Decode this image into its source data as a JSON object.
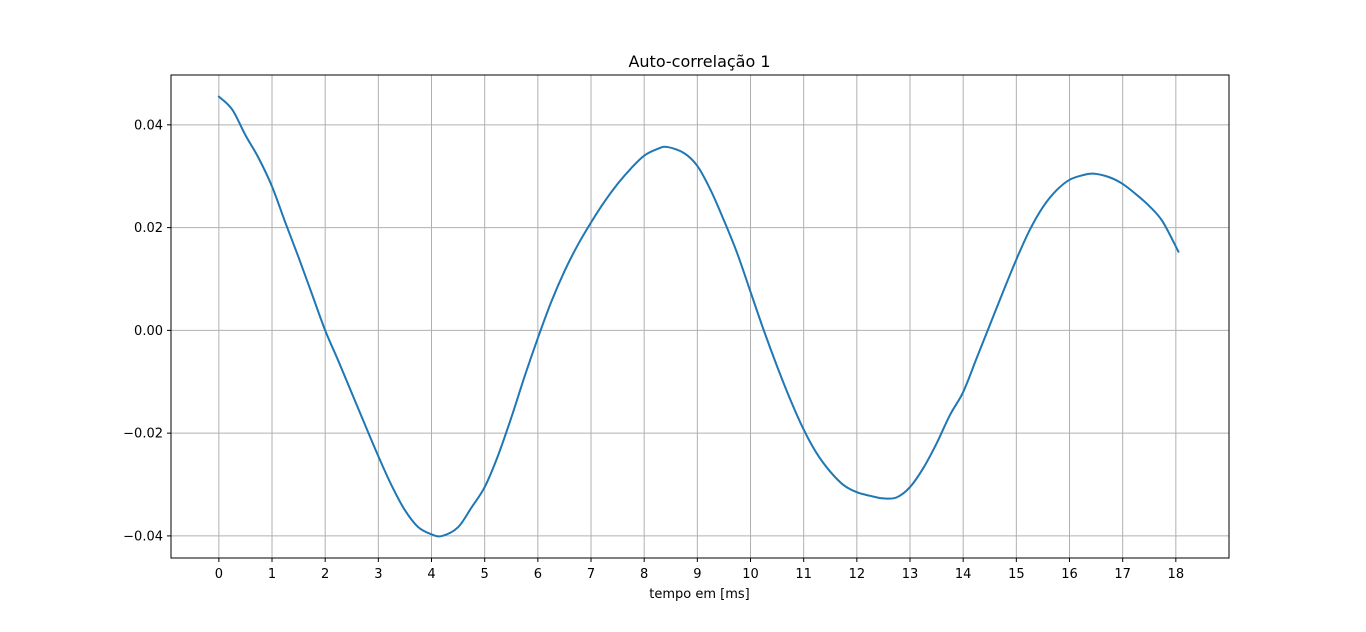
{
  "chart_data": {
    "type": "line",
    "title": "Auto-correlação 1",
    "xlabel": "tempo em [ms]",
    "ylabel": "",
    "xlim": [
      -0.9,
      19.0
    ],
    "ylim": [
      -0.0443,
      0.0497
    ],
    "x_ticks": [
      0,
      1,
      2,
      3,
      4,
      5,
      6,
      7,
      8,
      9,
      10,
      11,
      12,
      13,
      14,
      15,
      16,
      17,
      18
    ],
    "x_tick_labels": [
      "0",
      "1",
      "2",
      "3",
      "4",
      "5",
      "6",
      "7",
      "8",
      "9",
      "10",
      "11",
      "12",
      "13",
      "14",
      "15",
      "16",
      "17",
      "18"
    ],
    "y_ticks": [
      -0.04,
      -0.02,
      0.0,
      0.02,
      0.04
    ],
    "y_tick_labels": [
      "−0.04",
      "−0.02",
      "0.00",
      "0.02",
      "0.04"
    ],
    "grid": true,
    "series": [
      {
        "color": "#1f77b4",
        "x": [
          0.0,
          0.25,
          0.5,
          0.75,
          1.0,
          1.25,
          1.5,
          1.75,
          2.0,
          2.25,
          2.5,
          2.75,
          3.0,
          3.25,
          3.5,
          3.75,
          4.0,
          4.2,
          4.5,
          4.75,
          5.0,
          5.25,
          5.5,
          5.75,
          6.0,
          6.25,
          6.5,
          6.75,
          7.0,
          7.25,
          7.5,
          7.75,
          8.0,
          8.25,
          8.43,
          8.75,
          9.0,
          9.25,
          9.5,
          9.75,
          10.0,
          10.25,
          10.5,
          10.75,
          11.0,
          11.25,
          11.5,
          11.75,
          12.0,
          12.25,
          12.5,
          12.75,
          13.0,
          13.25,
          13.5,
          13.75,
          14.0,
          14.25,
          14.5,
          14.75,
          15.0,
          15.25,
          15.5,
          15.75,
          16.0,
          16.25,
          16.45,
          16.75,
          17.0,
          17.25,
          17.5,
          17.75,
          18.05
        ],
        "y": [
          0.0455,
          0.043,
          0.038,
          0.0335,
          0.028,
          0.021,
          0.0142,
          0.0071,
          0.0,
          -0.006,
          -0.0122,
          -0.0184,
          -0.0245,
          -0.0302,
          -0.035,
          -0.0383,
          -0.0397,
          -0.04,
          -0.0383,
          -0.0345,
          -0.0305,
          -0.0244,
          -0.017,
          -0.009,
          -0.0015,
          0.0055,
          0.0115,
          0.0166,
          0.021,
          0.025,
          0.0285,
          0.0315,
          0.034,
          0.0353,
          0.0357,
          0.0345,
          0.032,
          0.0273,
          0.0214,
          0.015,
          0.0075,
          0.0,
          -0.007,
          -0.0135,
          -0.0193,
          -0.024,
          -0.0275,
          -0.0301,
          -0.0315,
          -0.0322,
          -0.0327,
          -0.0325,
          -0.0305,
          -0.0268,
          -0.022,
          -0.0165,
          -0.012,
          -0.0055,
          0.001,
          0.0075,
          0.0138,
          0.0195,
          0.024,
          0.0272,
          0.0293,
          0.0302,
          0.0305,
          0.0298,
          0.0285,
          0.0265,
          0.0242,
          0.0212,
          0.0153
        ]
      }
    ]
  }
}
